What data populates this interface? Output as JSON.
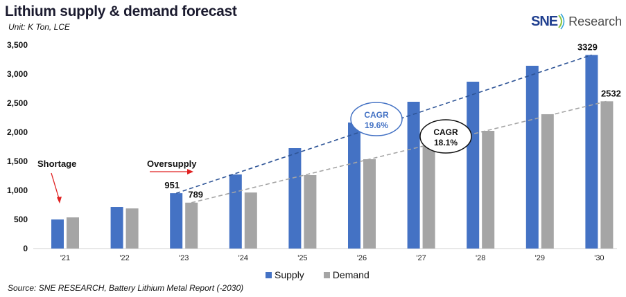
{
  "title": "Lithium supply & demand forecast",
  "unit": "Unit: K Ton, LCE",
  "logo": {
    "text_main": "SNE",
    "text_secondary": "Research"
  },
  "source": "Source: SNE RESEARCH, Battery Lithium Metal Report (-2030)",
  "chart_data": {
    "type": "bar",
    "title": "Lithium supply & demand forecast",
    "ylabel": "",
    "xlabel": "",
    "ylim": [
      0,
      3500
    ],
    "yticks": [
      "0",
      "500",
      "1,000",
      "1,500",
      "2,000",
      "2,500",
      "3,000",
      "3,500"
    ],
    "ytick_values": [
      0,
      500,
      1000,
      1500,
      2000,
      2500,
      3000,
      3500
    ],
    "grid": false,
    "legend": "bottom",
    "categories": [
      "'21",
      "'22",
      "'23",
      "'24",
      "'25",
      "'26",
      "'27",
      "'28",
      "'29",
      "'30"
    ],
    "series": [
      {
        "name": "Supply",
        "color": "#4472c4",
        "values": [
          500,
          714,
          951,
          1274,
          1726,
          2167,
          2524,
          2869,
          3143,
          3329
        ]
      },
      {
        "name": "Demand",
        "color": "#a5a5a5",
        "values": [
          536,
          690,
          789,
          964,
          1262,
          1536,
          1774,
          2024,
          2310,
          2532
        ]
      }
    ],
    "data_labels": [
      {
        "series": 0,
        "index": 2,
        "text": "951"
      },
      {
        "series": 1,
        "index": 2,
        "text": "789"
      },
      {
        "series": 0,
        "index": 9,
        "text": "3329"
      },
      {
        "series": 1,
        "index": 9,
        "text": "2532"
      }
    ],
    "annotations": {
      "shortage": "Shortage",
      "oversupply": "Oversupply",
      "cagr_supply": {
        "label": "CAGR",
        "value": "19.6%",
        "color": "#4472c4"
      },
      "cagr_demand": {
        "label": "CAGR",
        "value": "18.1%",
        "color": "#111111"
      }
    },
    "trend_color_supply": "#2f5597",
    "trend_color_demand": "#a5a5a5",
    "arrow_color": "#e02020"
  }
}
